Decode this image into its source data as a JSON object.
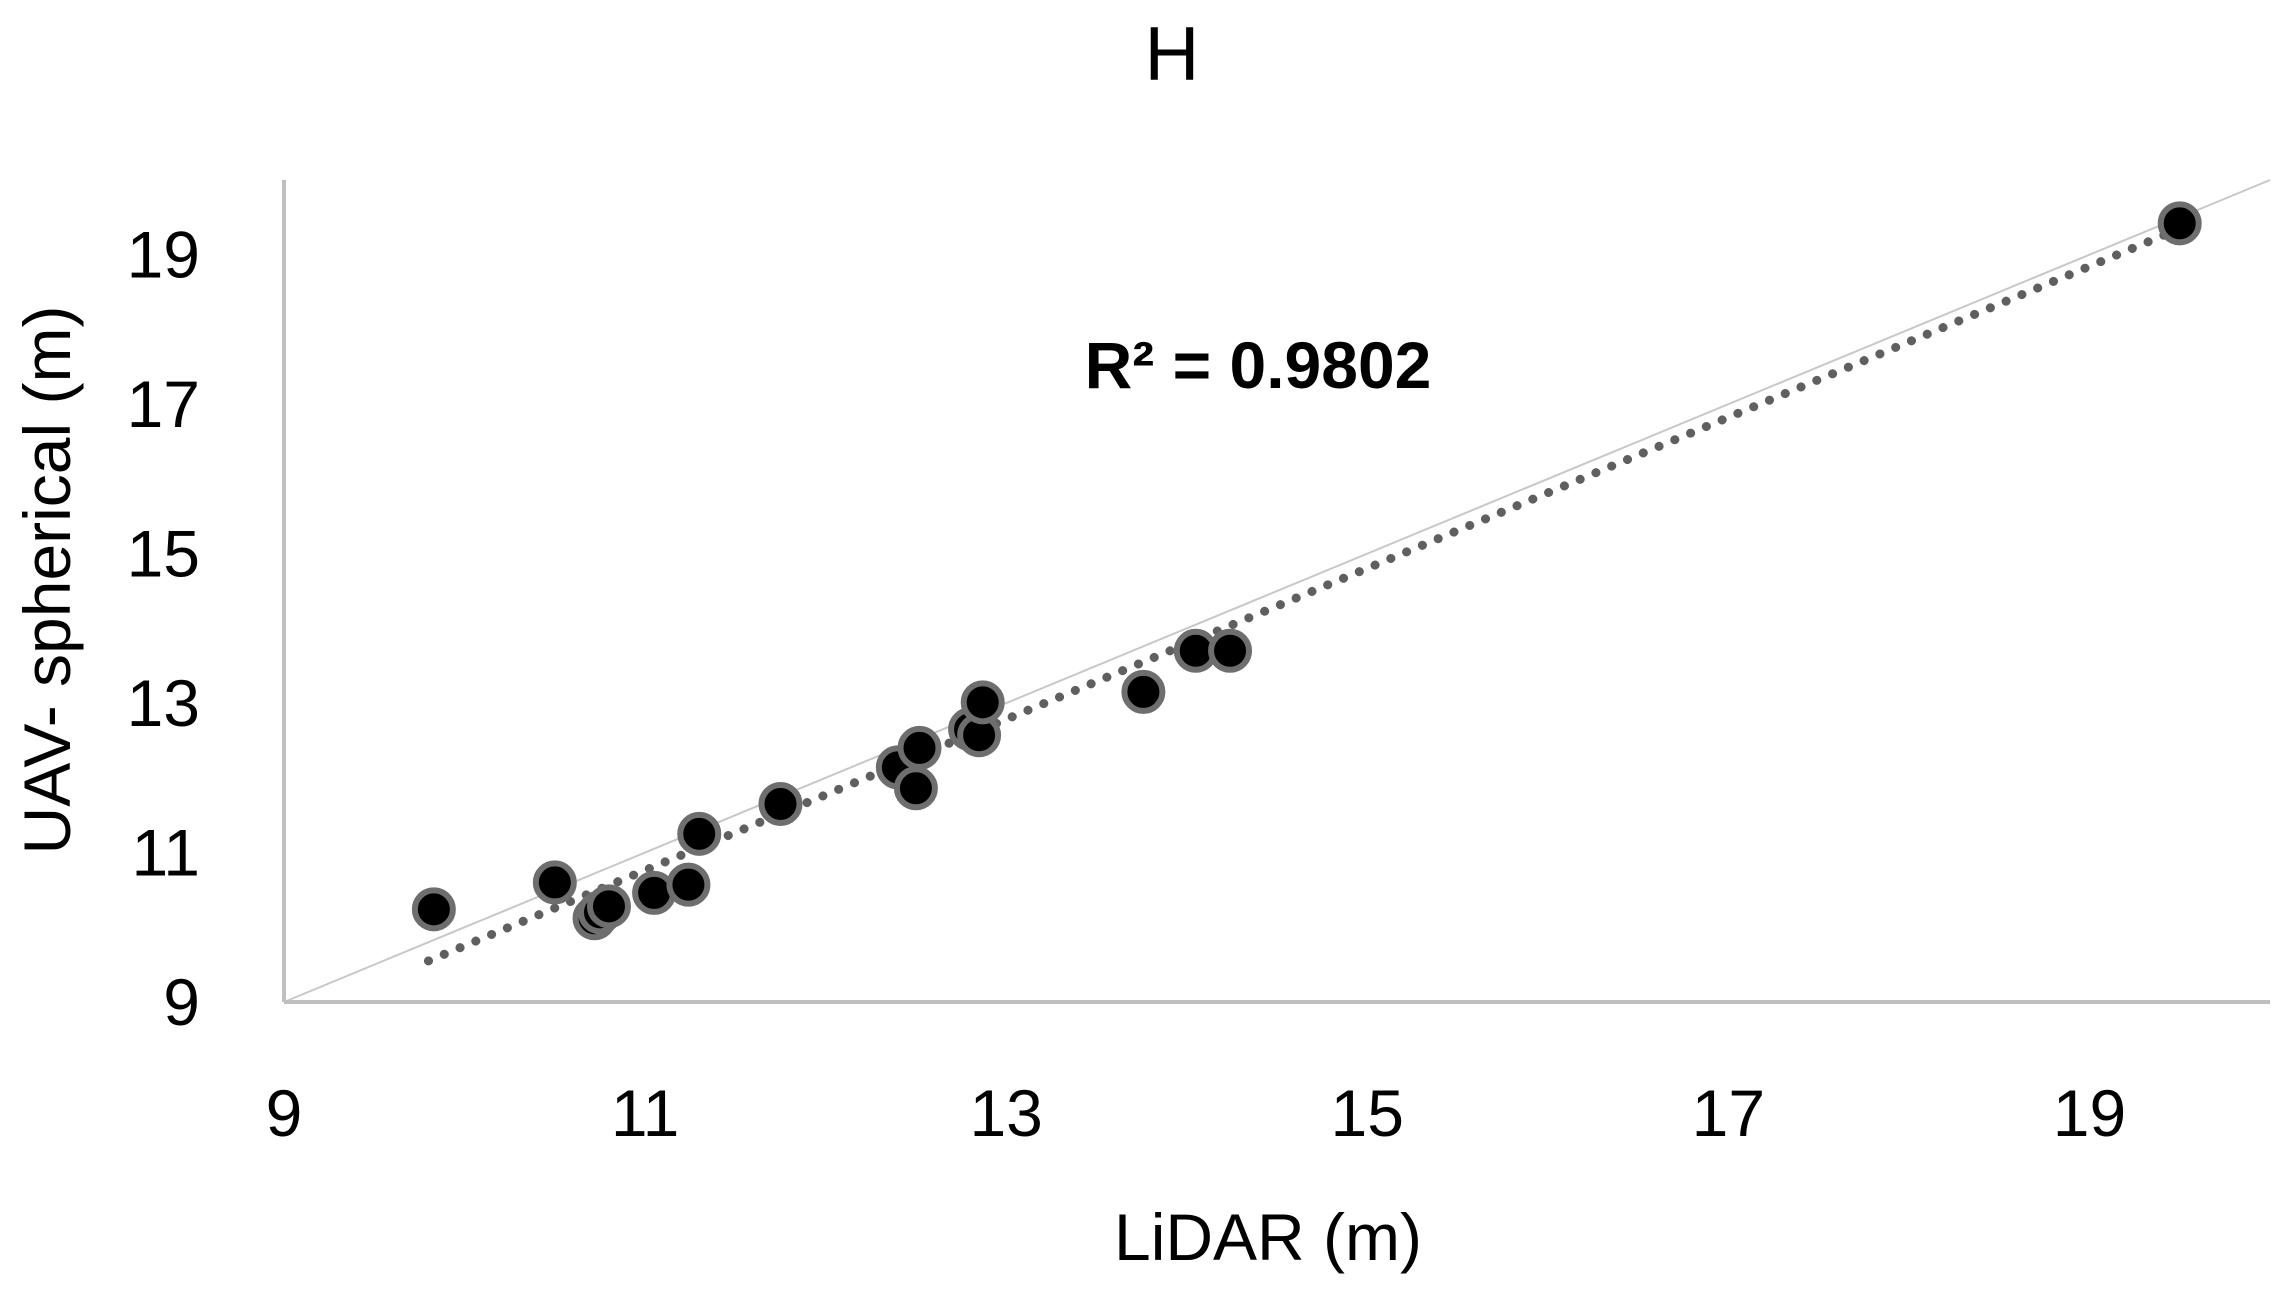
{
  "chart_data": {
    "type": "scatter",
    "title": "H",
    "xlabel": "LiDAR (m)",
    "ylabel": "UAV- spherical (m)",
    "xlim": [
      9,
      20
    ],
    "ylim": [
      9,
      20
    ],
    "x_ticks": [
      9,
      11,
      13,
      15,
      17,
      19
    ],
    "y_ticks": [
      9,
      11,
      13,
      15,
      17,
      19
    ],
    "grid": false,
    "annotation": "R² = 0.9802",
    "reference_line": {
      "style": "solid",
      "from": [
        9,
        9
      ],
      "to": [
        20,
        20
      ]
    },
    "trendline": {
      "style": "dotted",
      "from": [
        9.8,
        9.55
      ],
      "to": [
        19.55,
        19.4
      ]
    },
    "series": [
      {
        "points": [
          {
            "x": 9.83,
            "y": 10.24
          },
          {
            "x": 10.5,
            "y": 10.6
          },
          {
            "x": 10.72,
            "y": 10.12
          },
          {
            "x": 10.75,
            "y": 10.2
          },
          {
            "x": 10.8,
            "y": 10.28
          },
          {
            "x": 11.05,
            "y": 10.46
          },
          {
            "x": 11.24,
            "y": 10.57
          },
          {
            "x": 11.3,
            "y": 11.25
          },
          {
            "x": 11.75,
            "y": 11.65
          },
          {
            "x": 12.4,
            "y": 12.14
          },
          {
            "x": 12.5,
            "y": 11.86
          },
          {
            "x": 12.52,
            "y": 12.4
          },
          {
            "x": 12.8,
            "y": 12.65
          },
          {
            "x": 12.85,
            "y": 12.57
          },
          {
            "x": 12.87,
            "y": 13.01
          },
          {
            "x": 13.76,
            "y": 13.15
          },
          {
            "x": 14.05,
            "y": 13.7
          },
          {
            "x": 14.24,
            "y": 13.7
          },
          {
            "x": 19.5,
            "y": 19.42
          }
        ]
      }
    ],
    "colors": {
      "marker_fill": "#000000",
      "marker_edge": "#6e6e6e",
      "trendline": "#5f5f5f",
      "reference_line": "#c8c8c8",
      "axis": "#bfbfbf"
    }
  }
}
